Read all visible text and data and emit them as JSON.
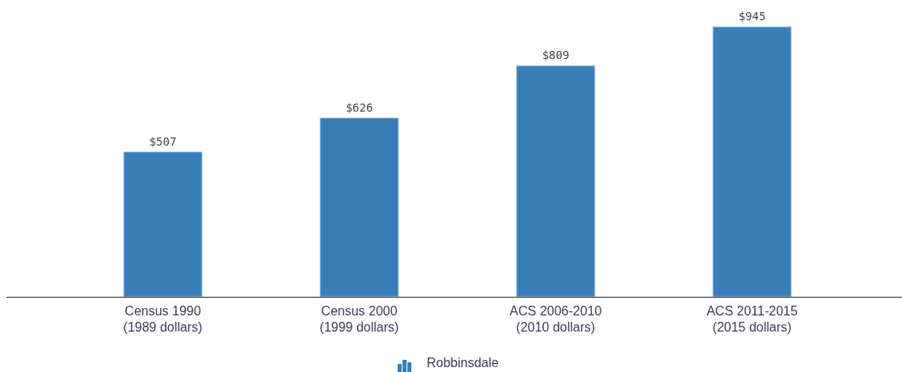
{
  "chart_data": {
    "type": "bar",
    "categories": [
      "Census 1990\n(1989 dollars)",
      "Census 2000\n(1999 dollars)",
      "ACS 2006-2010\n(2010 dollars)",
      "ACS 2011-2015\n(2015 dollars)"
    ],
    "series": [
      {
        "name": "Robbinsdale",
        "color": "#387fba",
        "values": [
          507,
          626,
          809,
          945
        ],
        "value_labels": [
          "$507",
          "$626",
          "$809",
          "$945"
        ]
      }
    ],
    "legend": "bottom"
  }
}
